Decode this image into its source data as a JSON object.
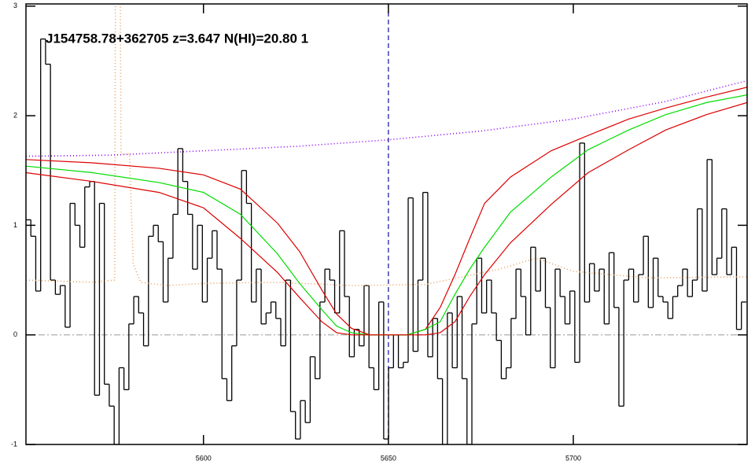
{
  "chart_data": {
    "type": "line",
    "annotation": "J154758.78+362705 z=3.647 N(HI)=20.80 1",
    "xlim": [
      5552,
      5747
    ],
    "ylim": [
      -1,
      3.02
    ],
    "xticks": [
      5600,
      5650,
      5700
    ],
    "yticks": [
      -1,
      0,
      1,
      2,
      3
    ],
    "reference_line": {
      "value": 0,
      "color": "#999999"
    },
    "vline": {
      "value": 5650,
      "color": "#1f1fa8"
    },
    "series": [
      {
        "style": "step",
        "color": "#000000",
        "bins": [
          5552,
          5553.325,
          5554.65,
          5555.975,
          5557.3,
          5558.625,
          5559.95,
          5561.275,
          5562.6,
          5563.925,
          5565.25,
          5566.575,
          5567.9,
          5569.225,
          5570.55,
          5571.875,
          5573.2,
          5574.525,
          5575.85,
          5577.175,
          5578.5,
          5579.825,
          5581.15,
          5582.475,
          5583.8,
          5585.125,
          5586.45,
          5587.775,
          5589.1,
          5590.425,
          5591.75,
          5593.075,
          5594.4,
          5595.725,
          5597.05,
          5598.375,
          5599.7,
          5601.025,
          5602.35,
          5603.675,
          5605,
          5606.325,
          5607.65,
          5608.975,
          5610.3,
          5611.625,
          5612.95,
          5614.275,
          5615.6,
          5616.925,
          5618.25,
          5619.575,
          5620.9,
          5622.225,
          5623.55,
          5624.875,
          5626.2,
          5627.525,
          5628.85,
          5630.175,
          5631.5,
          5632.825,
          5634.15,
          5635.475,
          5636.8,
          5638.125,
          5639.45,
          5640.775,
          5642.1,
          5643.425,
          5644.75,
          5646.075,
          5647.4,
          5648.725,
          5650.05,
          5651.375,
          5652.7,
          5654.025,
          5655.35,
          5656.675,
          5658,
          5659.325,
          5660.65,
          5661.975,
          5663.3,
          5664.625,
          5665.95,
          5667.275,
          5668.6,
          5669.925,
          5671.25,
          5672.575,
          5673.9,
          5675.225,
          5676.55,
          5677.875,
          5679.2,
          5680.525,
          5681.85,
          5683.175,
          5684.5,
          5685.825,
          5687.15,
          5688.475,
          5689.8,
          5691.125,
          5692.45,
          5693.775,
          5695.1,
          5696.425,
          5697.75,
          5699.075,
          5700.4,
          5701.725,
          5703.05,
          5704.375,
          5705.7,
          5707.025,
          5708.35,
          5709.675,
          5711,
          5712.325,
          5713.65,
          5714.975,
          5716.3,
          5717.625,
          5718.95,
          5720.275,
          5721.6,
          5722.925,
          5724.25,
          5725.575,
          5726.9,
          5728.225,
          5729.55,
          5730.875,
          5732.2,
          5733.525,
          5734.85,
          5736.175,
          5737.5,
          5738.825,
          5740.15,
          5741.475,
          5742.8,
          5744.125,
          5745.45,
          5746.775
        ],
        "values": [
          1.05,
          0.9,
          0.4,
          2.7,
          2.47,
          0.5,
          0.37,
          0.45,
          0.07,
          1.2,
          1.0,
          0.8,
          1.35,
          1.4,
          -0.55,
          1.2,
          -0.45,
          -0.65,
          -1.0,
          -0.3,
          -0.5,
          0.1,
          0.35,
          0.2,
          -0.1,
          0.9,
          1.0,
          0.85,
          0.3,
          0.7,
          1.1,
          1.7,
          1.4,
          1.1,
          0.6,
          1.0,
          0.3,
          0.7,
          0.95,
          0.6,
          -0.4,
          -0.6,
          -0.1,
          0.5,
          1.5,
          1.2,
          0.3,
          0.6,
          0.1,
          0.2,
          0.3,
          0.15,
          -0.1,
          0.5,
          -0.7,
          -0.95,
          -0.6,
          -0.8,
          -0.2,
          -0.4,
          0.3,
          0.6,
          0.5,
          0.2,
          0.95,
          0.35,
          -0.2,
          0.05,
          -0.1,
          0.45,
          -0.3,
          -0.5,
          0.3,
          -0.95,
          -0.3,
          0.0,
          -0.3,
          -0.25,
          1.25,
          -0.15,
          0.5,
          1.3,
          -0.2,
          0.15,
          -0.4,
          -1.0,
          0.2,
          -0.3,
          0.35,
          -0.4,
          -1.0,
          0.1,
          0.7,
          0.2,
          0.5,
          0.2,
          -0.05,
          -0.4,
          -0.3,
          0.15,
          0.6,
          0.35,
          0.0,
          0.8,
          0.4,
          0.7,
          0.25,
          -0.3,
          0.6,
          0.35,
          0.1,
          0.4,
          -0.25,
          1.75,
          0.3,
          0.65,
          0.4,
          0.6,
          0.1,
          0.75,
          0.25,
          -0.65,
          0.5,
          0.6,
          0.3,
          0.55,
          0.9,
          0.25,
          0.7,
          0.35,
          0.3,
          0.15,
          0.35,
          0.45,
          0.6,
          0.35,
          0.5,
          1.15,
          0.4,
          1.6,
          0.55,
          0.7,
          1.15,
          0.55,
          0.8,
          0.05,
          0.3
        ]
      },
      {
        "style": "dotted",
        "color": "#e8a060",
        "x": [
          5552,
          5570,
          5576,
          5576.2,
          5577.5,
          5577.7,
          5580,
          5581,
          5583,
          5590,
          5600,
          5620,
          5640,
          5660,
          5680,
          5690,
          5700,
          5720,
          5747
        ],
        "values": [
          0.5,
          0.48,
          0.5,
          3.2,
          3.2,
          1.65,
          1.65,
          0.65,
          0.48,
          0.45,
          0.47,
          0.48,
          0.45,
          0.46,
          0.6,
          0.7,
          0.58,
          0.52,
          0.53
        ]
      },
      {
        "style": "dotted",
        "color": "#8a00ff",
        "x": [
          5552,
          5575,
          5600,
          5625,
          5650,
          5675,
          5700,
          5725,
          5747
        ],
        "values": [
          1.63,
          1.64,
          1.68,
          1.72,
          1.78,
          1.86,
          1.97,
          2.13,
          2.32
        ]
      },
      {
        "style": "solid",
        "color": "#dd0000",
        "x": [
          5552,
          5570,
          5588,
          5600,
          5610,
          5620,
          5626,
          5632,
          5636,
          5640,
          5645,
          5655,
          5660,
          5664,
          5668,
          5672,
          5676,
          5683,
          5694,
          5704,
          5715,
          5725,
          5736,
          5747
        ],
        "values": [
          1.6,
          1.57,
          1.52,
          1.46,
          1.33,
          1.02,
          0.76,
          0.41,
          0.19,
          0.06,
          0,
          0,
          0.05,
          0.25,
          0.55,
          0.88,
          1.2,
          1.44,
          1.68,
          1.82,
          1.97,
          2.07,
          2.17,
          2.26
        ]
      },
      {
        "style": "solid",
        "color": "#00dd00",
        "x": [
          5552,
          5570,
          5588,
          5600,
          5610,
          5620,
          5626,
          5632,
          5636,
          5640,
          5645,
          5655,
          5660,
          5664,
          5668,
          5672,
          5676,
          5683,
          5694,
          5704,
          5715,
          5725,
          5736,
          5747
        ],
        "values": [
          1.54,
          1.48,
          1.39,
          1.3,
          1.1,
          0.74,
          0.47,
          0.23,
          0.08,
          0.02,
          0,
          0,
          0.05,
          0.12,
          0.37,
          0.6,
          0.8,
          1.12,
          1.44,
          1.69,
          1.87,
          2.01,
          2.12,
          2.19
        ]
      },
      {
        "style": "solid",
        "color": "#dd0000",
        "x": [
          5552,
          5570,
          5588,
          5600,
          5610,
          5620,
          5626,
          5632,
          5636,
          5640,
          5645,
          5655,
          5660,
          5664,
          5668,
          5672,
          5676,
          5683,
          5694,
          5704,
          5715,
          5725,
          5736,
          5747
        ],
        "values": [
          1.48,
          1.4,
          1.3,
          1.16,
          0.88,
          0.57,
          0.34,
          0.12,
          0.02,
          0,
          0,
          0,
          0,
          0.02,
          0.12,
          0.35,
          0.55,
          0.84,
          1.19,
          1.48,
          1.69,
          1.87,
          2.01,
          2.12
        ]
      }
    ]
  }
}
